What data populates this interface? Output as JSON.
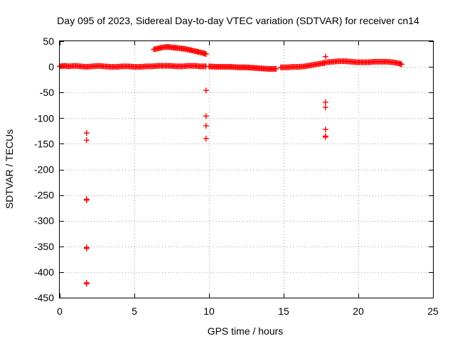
{
  "chart_data": {
    "type": "scatter",
    "title": "Day 095 of 2023, Sidereal Day-to-day VTEC variation (SDTVAR) for receiver cn14",
    "xlabel": "GPS time / hours",
    "ylabel": "SDTVAR / TECUs",
    "xlim": [
      0,
      25
    ],
    "ylim": [
      -450,
      50
    ],
    "xticks": [
      0,
      5,
      10,
      15,
      20,
      25
    ],
    "yticks": [
      50,
      0,
      -50,
      -100,
      -150,
      -200,
      -250,
      -300,
      -350,
      -400,
      -450
    ],
    "grid": true,
    "marker": "+",
    "color": "#ff0000",
    "series": [
      {
        "dense_segments": [
          {
            "x": [
              0.0,
              0.3,
              0.6,
              1.0,
              1.4,
              1.8,
              2.2,
              2.6,
              3.0,
              3.4,
              3.8,
              4.2,
              4.6,
              5.0,
              5.4,
              5.8,
              6.2,
              6.6,
              7.0,
              7.4,
              7.8,
              8.2,
              8.6,
              9.0,
              9.4,
              9.8
            ],
            "y": [
              1,
              2,
              1,
              2,
              1,
              0,
              1,
              2,
              1,
              0,
              0,
              1,
              1,
              0,
              0,
              1,
              1,
              2,
              2,
              2,
              1,
              1,
              2,
              2,
              1,
              1
            ]
          },
          {
            "x": [
              6.3,
              6.6,
              6.9,
              7.2,
              7.5,
              7.8,
              8.1,
              8.4,
              8.7,
              9.0,
              9.3,
              9.6,
              9.8
            ],
            "y": [
              34,
              36,
              38,
              39,
              38,
              37,
              36,
              35,
              33,
              31,
              29,
              27,
              25
            ]
          },
          {
            "x": [
              10.0,
              10.5,
              11.0,
              11.5,
              12.0,
              12.5,
              13.0,
              13.5,
              14.0,
              14.5
            ],
            "y": [
              1,
              0,
              0,
              0,
              -1,
              -1,
              -2,
              -3,
              -4,
              -4
            ]
          },
          {
            "x": [
              14.8,
              15.2,
              15.6,
              16.0,
              16.4,
              16.8,
              17.2,
              17.6,
              17.8
            ],
            "y": [
              -1,
              -1,
              0,
              0,
              1,
              3,
              5,
              7,
              8
            ]
          },
          {
            "x": [
              17.9,
              18.3,
              18.7,
              19.1,
              19.5,
              19.9,
              20.3,
              20.7,
              21.1,
              21.5,
              21.9,
              22.3,
              22.7,
              22.9
            ],
            "y": [
              9,
              10,
              11,
              11,
              10,
              9,
              9,
              9,
              10,
              10,
              10,
              9,
              7,
              5
            ]
          }
        ],
        "points": [
          {
            "x": 1.8,
            "y": -129
          },
          {
            "x": 1.8,
            "y": -143
          },
          {
            "x": 1.8,
            "y": -258
          },
          {
            "x": 1.8,
            "y": -260
          },
          {
            "x": 1.8,
            "y": -352
          },
          {
            "x": 1.8,
            "y": -354
          },
          {
            "x": 1.8,
            "y": -421
          },
          {
            "x": 1.8,
            "y": -423
          },
          {
            "x": 9.8,
            "y": -46
          },
          {
            "x": 9.8,
            "y": -96
          },
          {
            "x": 9.8,
            "y": -115
          },
          {
            "x": 9.8,
            "y": -140
          },
          {
            "x": 17.8,
            "y": 20
          },
          {
            "x": 17.8,
            "y": -69
          },
          {
            "x": 17.8,
            "y": -79
          },
          {
            "x": 17.8,
            "y": -122
          },
          {
            "x": 17.8,
            "y": -135
          },
          {
            "x": 17.8,
            "y": -137
          }
        ]
      }
    ]
  }
}
